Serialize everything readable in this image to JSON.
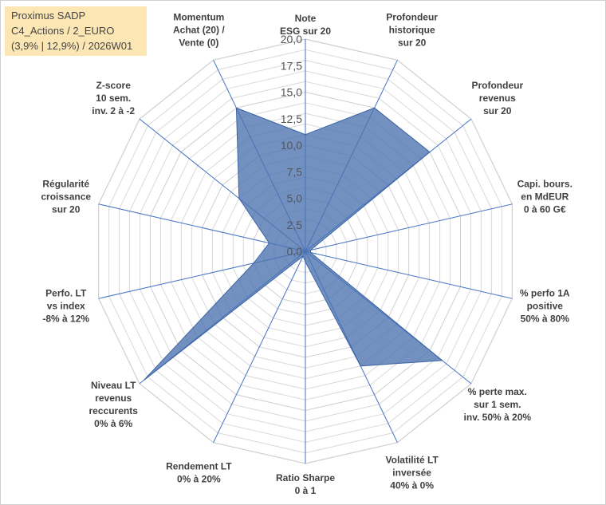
{
  "title_box": {
    "line1": "Proximus SADP",
    "line2": "C4_Actions / 2_EURO",
    "line3": "(3,9% | 12,9%) / 2026W01"
  },
  "colors": {
    "fill": "#4a72b0",
    "fill_opacity": "0.78",
    "axis": "#4472c4",
    "grid": "#d9d9d9",
    "title_bg": "#fbe6b4"
  },
  "chart_data": {
    "type": "radar",
    "title": "Proximus SADP",
    "rlim": [
      0,
      20
    ],
    "ticks": [
      0,
      2.5,
      5,
      7.5,
      10,
      12.5,
      15,
      17.5,
      20
    ],
    "tick_labels": [
      "0,0",
      "2,5",
      "5,0",
      "7,5",
      "10,0",
      "12,5",
      "15,0",
      "17,5",
      "20,0"
    ],
    "axes": [
      {
        "label": [
          "Note",
          "ESG sur 20"
        ],
        "value": 11
      },
      {
        "label": [
          "Profondeur",
          "historique",
          "sur 20"
        ],
        "value": 15
      },
      {
        "label": [
          "Profondeur",
          "revenus",
          "sur 20"
        ],
        "value": 15
      },
      {
        "label": [
          "Capi. bours.",
          "en MdEUR",
          "0 à 60 G€"
        ],
        "value": 0.5
      },
      {
        "label": [
          "% perfo 1A",
          "positive",
          "50% à 80%"
        ],
        "value": 0.5
      },
      {
        "label": [
          "% perte max.",
          "sur 1 sem.",
          "inv. 50% à 20%"
        ],
        "value": 16.5
      },
      {
        "label": [
          "Volatilité LT",
          "inversée",
          "40% à 0%"
        ],
        "value": 12
      },
      {
        "label": [
          "Ratio Sharpe",
          "0 à 1"
        ],
        "value": 1
      },
      {
        "label": [
          "Rendement LT",
          "0% à 20%"
        ],
        "value": 0.5
      },
      {
        "label": [
          "Niveau LT",
          "revenus",
          "reccurents",
          "0% à 6%"
        ],
        "value": 19.5
      },
      {
        "label": [
          "Perfo. LT",
          "vs index",
          "-8% à 12%"
        ],
        "value": 5
      },
      {
        "label": [
          "Régularité",
          "croissance",
          "sur 20"
        ],
        "value": 3.5
      },
      {
        "label": [
          "Z-score",
          "10 sem.",
          "inv. 2 à -2"
        ],
        "value": 8
      },
      {
        "label": [
          "Momentum",
          "Achat (20) /",
          "Vente (0)"
        ],
        "value": 15
      }
    ]
  }
}
